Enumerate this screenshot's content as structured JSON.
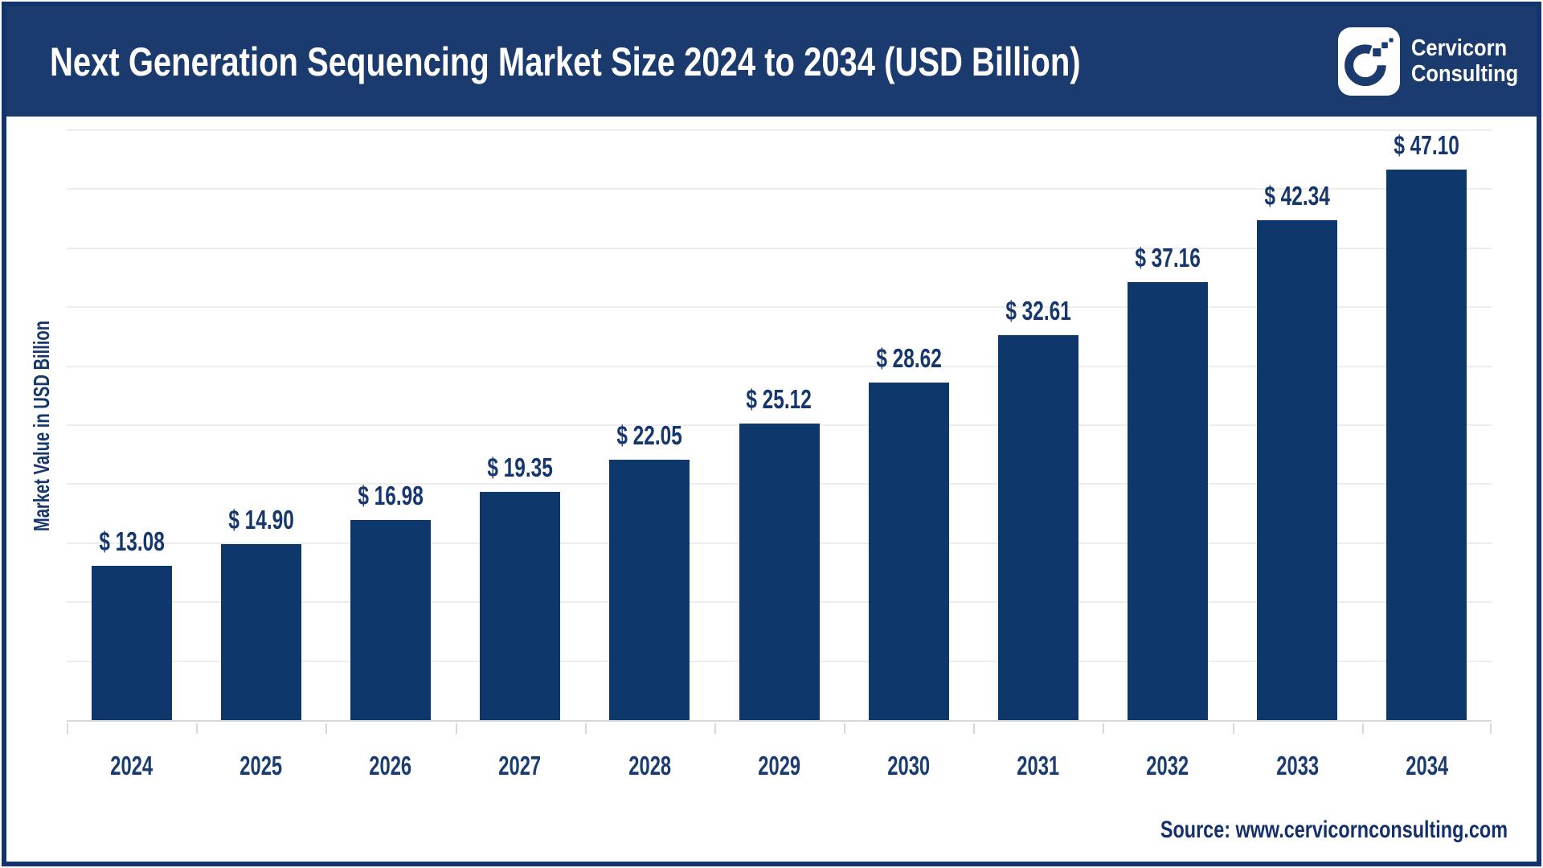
{
  "header": {
    "title": "Next Generation Sequencing Market Size 2024 to 2034 (USD Billion)",
    "brand_line1": "Cervicorn",
    "brand_line2": "Consulting",
    "logo_icon": "cervicorn-c-logo"
  },
  "chart_data": {
    "type": "bar",
    "title": "Next Generation Sequencing Market Size 2024 to 2034 (USD Billion)",
    "categories": [
      "2024",
      "2025",
      "2026",
      "2027",
      "2028",
      "2029",
      "2030",
      "2031",
      "2032",
      "2033",
      "2034"
    ],
    "values": [
      13.08,
      14.9,
      16.98,
      19.35,
      22.05,
      25.12,
      28.62,
      32.61,
      37.16,
      42.34,
      47.1
    ],
    "data_labels": [
      "$ 13.08",
      "$ 14.90",
      "$ 16.98",
      "$ 19.35",
      "$ 22.05",
      "$ 25.12",
      "$ 28.62",
      "$ 32.61",
      "$ 37.16",
      "$ 42.34",
      "$ 47.10"
    ],
    "value_prefix": "$ ",
    "xlabel": "",
    "ylabel": "Market Value in USD Billion",
    "ylim": [
      0,
      50
    ],
    "grid_step": 5,
    "grid": true,
    "legend": false,
    "bar_color": "#0e386b",
    "accent_navy": "#1b3a6e",
    "gridline_color": "#ededed",
    "axis_color": "#d8d8d8"
  },
  "footer": {
    "source": "Source: www.cervicornconsulting.com"
  }
}
